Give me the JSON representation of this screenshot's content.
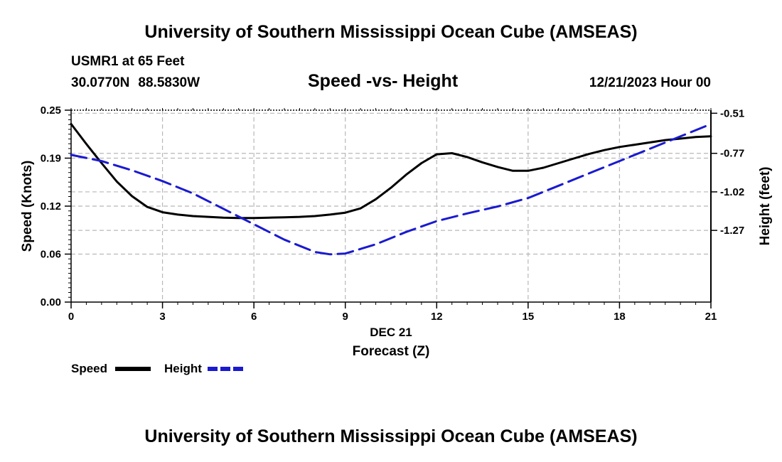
{
  "header": {
    "title": "University of Southern Mississippi Ocean Cube (AMSEAS)",
    "station": "USMR1 at 65 Feet",
    "lat": "30.0770N",
    "lon": "88.5830W",
    "chart_title": "Speed -vs- Height",
    "datetime": "12/21/2023 Hour 00"
  },
  "legend": {
    "speed_label": "Speed",
    "height_label": "Height"
  },
  "footer": {
    "title": "University of Southern Mississippi Ocean Cube (AMSEAS)"
  },
  "chart_data": {
    "type": "line",
    "title": "Speed -vs- Height",
    "xlabel": "Forecast (Z)",
    "xdate_label": "DEC 21",
    "ylabel": "Speed (Knots)",
    "y2label": "Height (feet)",
    "xlim": [
      0,
      21
    ],
    "ylim": [
      0,
      0.25
    ],
    "y2lim": [
      -1.735,
      -0.49
    ],
    "xticks": [
      0,
      3,
      6,
      9,
      12,
      15,
      18,
      21
    ],
    "xtick_labels": [
      "0",
      "3",
      "6",
      "9",
      "12",
      "15",
      "18",
      "21"
    ],
    "yticks": [
      0,
      0.0625,
      0.125,
      0.1875,
      0.25
    ],
    "ytick_labels": [
      "0.00",
      "0.06",
      "0.12",
      "0.19",
      "0.25"
    ],
    "y2ticks": [
      -0.51,
      -0.77,
      -1.02,
      -1.27
    ],
    "y2tick_labels": [
      "-0.51",
      "-0.77",
      "-1.02",
      "-1.27"
    ],
    "grid": true,
    "colors": {
      "speed": "#000000",
      "height": "#1a1ad0",
      "grid": "#b8b8b8"
    },
    "series": [
      {
        "name": "Speed",
        "axis": "left",
        "style": "solid",
        "x": [
          0,
          0.5,
          1,
          1.5,
          2,
          2.5,
          3,
          3.5,
          4,
          4.5,
          5,
          5.5,
          6,
          6.5,
          7,
          7.5,
          8,
          8.5,
          9,
          9.5,
          10,
          10.5,
          11,
          11.5,
          12,
          12.5,
          13,
          13.5,
          14,
          14.5,
          15,
          15.5,
          16,
          16.5,
          17,
          17.5,
          18,
          18.5,
          19,
          19.5,
          20,
          20.5,
          21
        ],
        "values": [
          0.232,
          0.206,
          0.181,
          0.157,
          0.138,
          0.124,
          0.117,
          0.114,
          0.112,
          0.111,
          0.11,
          0.1095,
          0.1095,
          0.11,
          0.1105,
          0.111,
          0.112,
          0.114,
          0.1165,
          0.122,
          0.134,
          0.149,
          0.166,
          0.181,
          0.1925,
          0.194,
          0.189,
          0.182,
          0.176,
          0.171,
          0.171,
          0.175,
          0.181,
          0.187,
          0.193,
          0.198,
          0.202,
          0.205,
          0.208,
          0.211,
          0.213,
          0.215,
          0.216
        ]
      },
      {
        "name": "Height",
        "axis": "right",
        "style": "dashed",
        "x": [
          0,
          1,
          2,
          3,
          4,
          5,
          6,
          7,
          8,
          8.5,
          9,
          10,
          11,
          12,
          13,
          14,
          15,
          16,
          17,
          18,
          19,
          20,
          21
        ],
        "values": [
          -0.78,
          -0.82,
          -0.88,
          -0.95,
          -1.03,
          -1.13,
          -1.23,
          -1.33,
          -1.41,
          -1.425,
          -1.42,
          -1.36,
          -1.28,
          -1.21,
          -1.16,
          -1.115,
          -1.06,
          -0.98,
          -0.9,
          -0.82,
          -0.74,
          -0.66,
          -0.58
        ]
      }
    ]
  }
}
